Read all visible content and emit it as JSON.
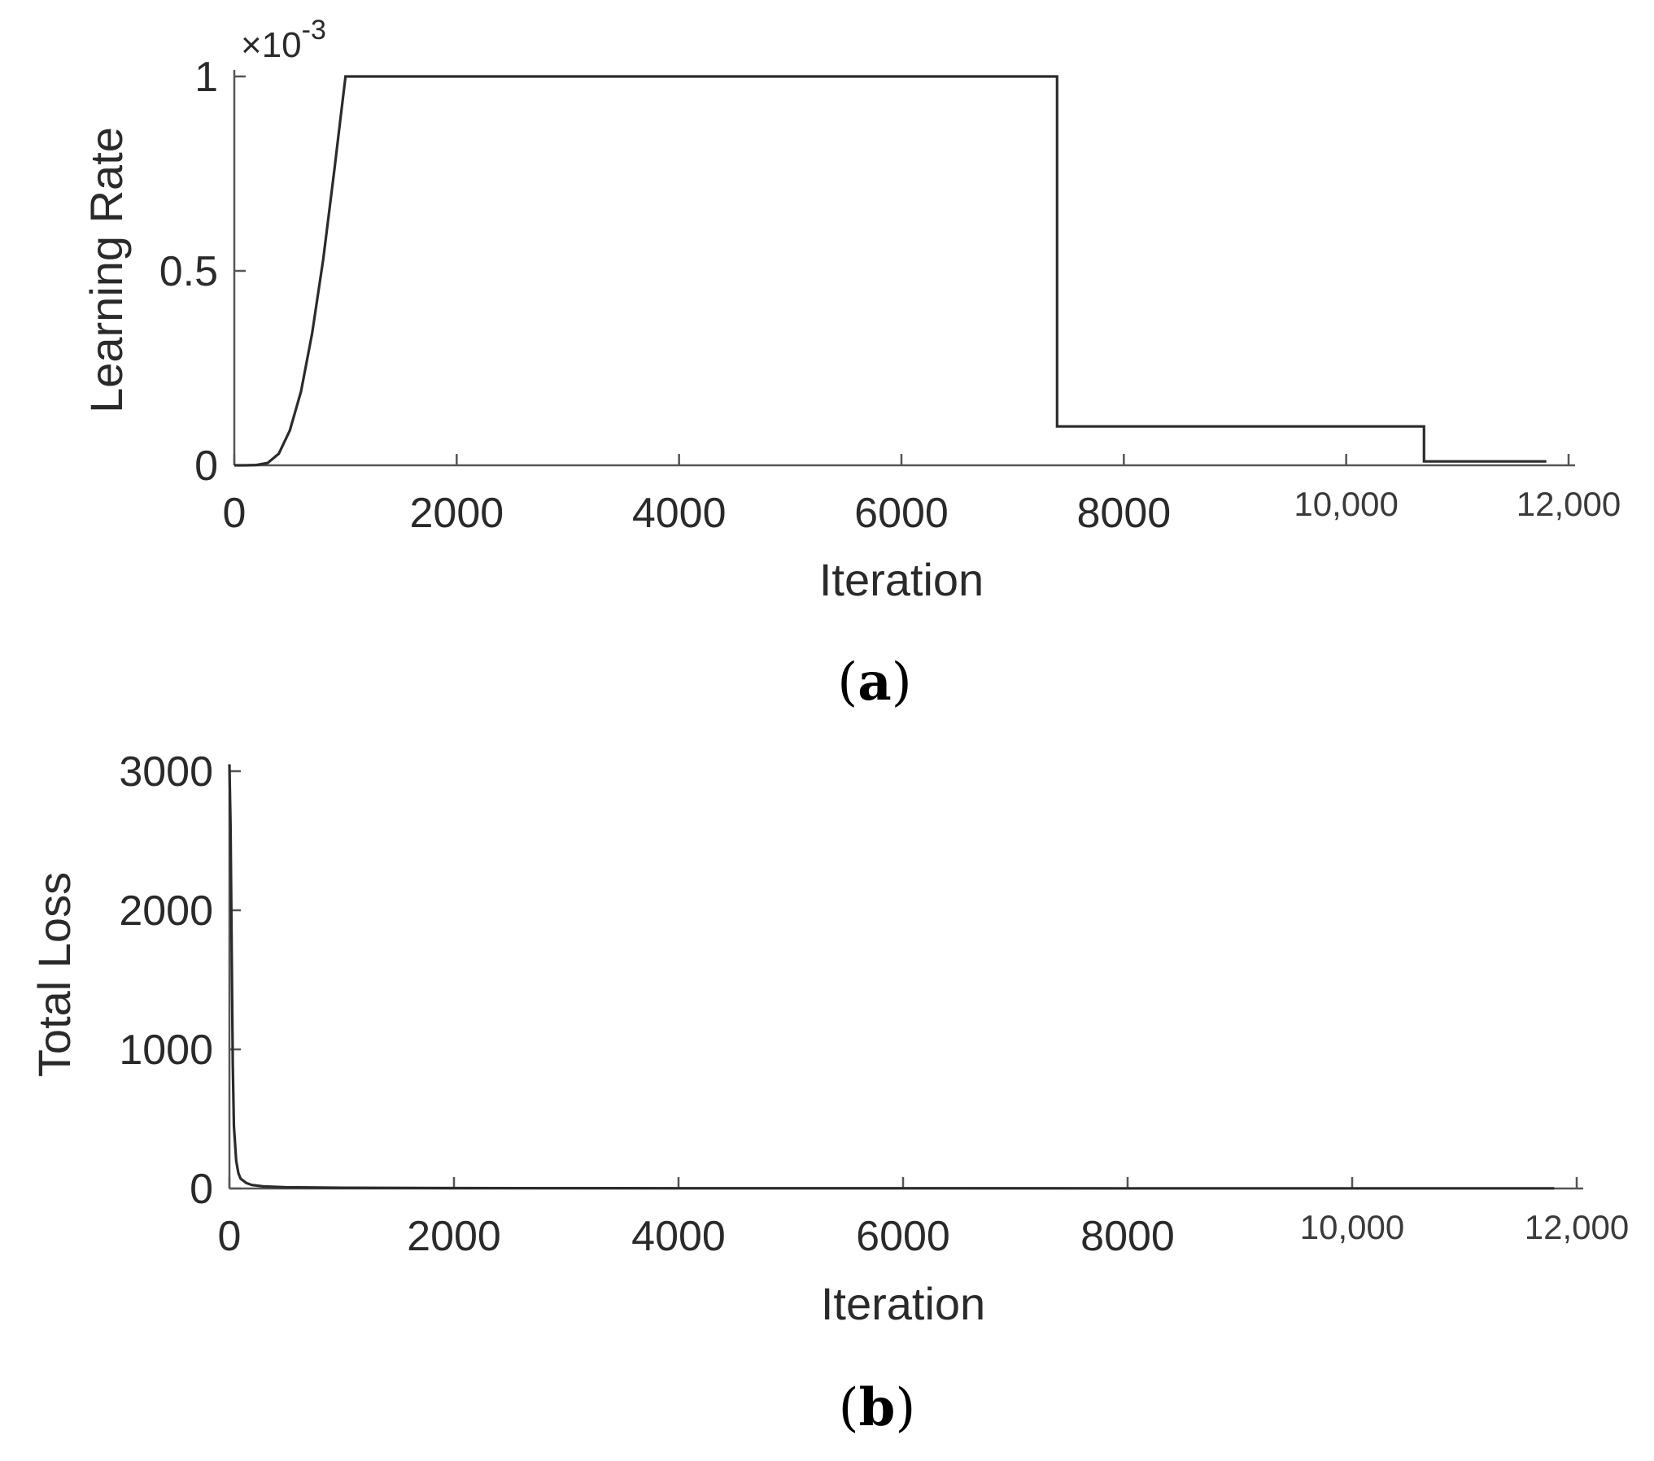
{
  "chart_data": [
    {
      "type": "line",
      "panel": "a",
      "caption": {
        "open": "(",
        "letter": "a",
        "close": ")"
      },
      "xlabel": "Iteration",
      "ylabel": "Learning Rate",
      "y_exponent": {
        "base": "×10",
        "power": "-3"
      },
      "xlim": [
        0,
        12000
      ],
      "ylim": [
        0,
        1
      ],
      "xticks": [
        0,
        2000,
        4000,
        6000,
        8000,
        10000,
        12000
      ],
      "xtick_labels": [
        "0",
        "2000",
        "4000",
        "6000",
        "8000",
        "10,000",
        "12,000"
      ],
      "yticks": [
        0,
        0.5,
        1
      ],
      "ytick_labels": [
        "0",
        "0.5",
        "1"
      ],
      "grid": false,
      "series": [
        {
          "x": [
            0,
            100,
            200,
            300,
            400,
            500,
            600,
            700,
            800,
            900,
            950,
            1000,
            7400,
            7400,
            10700,
            10700,
            11800
          ],
          "y": [
            0,
            0,
            0.0008,
            0.006,
            0.03,
            0.09,
            0.19,
            0.34,
            0.53,
            0.76,
            0.88,
            1.0,
            1.0,
            0.1,
            0.1,
            0.01,
            0.01
          ]
        }
      ]
    },
    {
      "type": "line",
      "panel": "b",
      "caption": {
        "open": "(",
        "letter": "b",
        "close": ")"
      },
      "xlabel": "Iteration",
      "ylabel": "Total Loss",
      "xlim": [
        0,
        12000
      ],
      "ylim": [
        0,
        3000
      ],
      "xticks": [
        0,
        2000,
        4000,
        6000,
        8000,
        10000,
        12000
      ],
      "xtick_labels": [
        "0",
        "2000",
        "4000",
        "6000",
        "8000",
        "10,000",
        "12,000"
      ],
      "yticks": [
        0,
        1000,
        2000,
        3000
      ],
      "ytick_labels": [
        "0",
        "1000",
        "2000",
        "3000"
      ],
      "grid": false,
      "series": [
        {
          "x": [
            0,
            10,
            20,
            30,
            40,
            60,
            80,
            100,
            150,
            200,
            300,
            500,
            1000,
            2000,
            4000,
            6000,
            8000,
            10000,
            11800
          ],
          "y": [
            3050,
            2600,
            1700,
            900,
            450,
            200,
            110,
            70,
            40,
            25,
            15,
            9,
            5,
            3,
            2,
            2,
            1,
            1,
            1
          ]
        }
      ]
    }
  ]
}
